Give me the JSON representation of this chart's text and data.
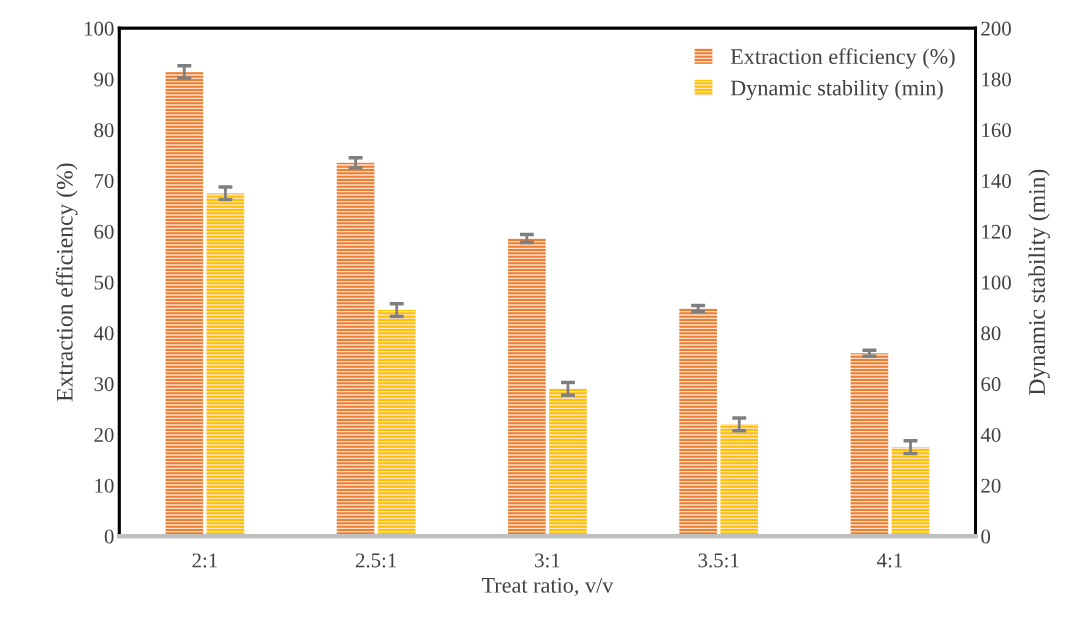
{
  "chart_data": {
    "type": "bar",
    "xlabel": "Treat ratio, v/v",
    "ylabel": "Extraction efficiency (%)",
    "y2label": "Dynamic stability (min)",
    "categories": [
      "2:1",
      "2.5:1",
      "3:1",
      "3.5:1",
      "4:1"
    ],
    "series": [
      {
        "name": "Extraction efficiency (%)",
        "color": "#ed7d31",
        "values": [
          91.4,
          73.5,
          58.6,
          44.8,
          36.0
        ],
        "errors": [
          1.2,
          1.0,
          0.8,
          0.6,
          0.6
        ]
      },
      {
        "name": "Dynamic stability (min)",
        "color": "#ffc000",
        "axis": "y2",
        "values": [
          135,
          89,
          58,
          44,
          35
        ],
        "errors": [
          2.5,
          2.5,
          2.5,
          2.5,
          2.5
        ]
      }
    ],
    "ylim": [
      0,
      100
    ],
    "yticks": [
      0,
      10,
      20,
      30,
      40,
      50,
      60,
      70,
      80,
      90,
      100
    ],
    "y2lim": [
      0,
      200
    ],
    "y2ticks": [
      0,
      20,
      40,
      60,
      80,
      100,
      120,
      140,
      160,
      180,
      200
    ],
    "legend": "top right",
    "grid": false
  }
}
